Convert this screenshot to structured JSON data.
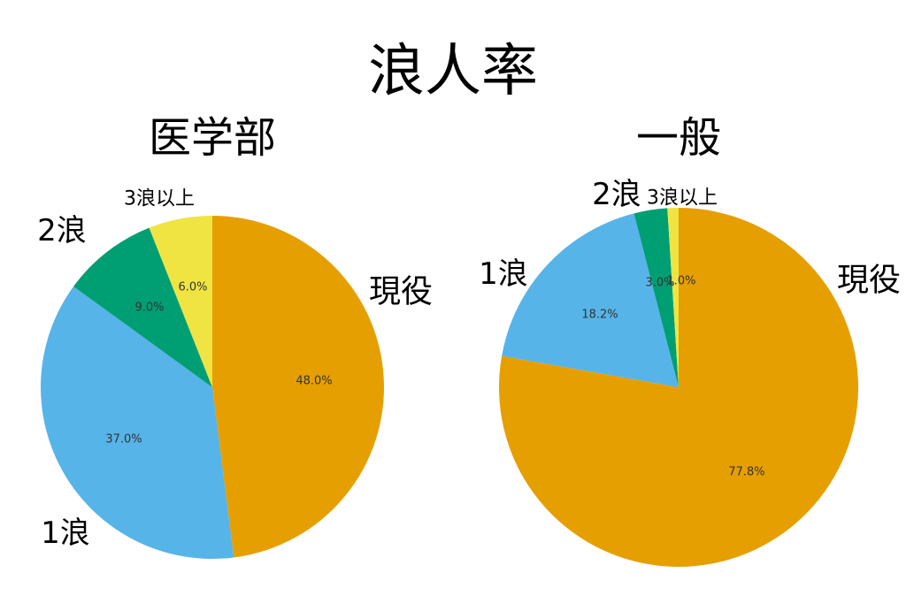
{
  "title": "浪人率",
  "chart_data": [
    {
      "type": "pie",
      "title": "医学部",
      "categories": [
        "現役",
        "1浪",
        "2浪",
        "3浪以上"
      ],
      "values": [
        48.0,
        37.0,
        9.0,
        6.0
      ],
      "value_labels": [
        "48.0%",
        "37.0%",
        "9.0%",
        "6.0%"
      ],
      "colors": [
        "#E69F00",
        "#56B4E9",
        "#009E73",
        "#F0E442"
      ],
      "start_angle": "top",
      "direction": "clockwise",
      "legend": "none"
    },
    {
      "type": "pie",
      "title": "一般",
      "categories": [
        "現役",
        "1浪",
        "2浪",
        "3浪以上"
      ],
      "values": [
        77.8,
        18.2,
        3.0,
        1.0
      ],
      "value_labels": [
        "77.8%",
        "18.2%",
        "3.0%",
        "1.0%"
      ],
      "colors": [
        "#E69F00",
        "#56B4E9",
        "#009E73",
        "#F0E442"
      ],
      "start_angle": "top",
      "direction": "clockwise",
      "legend": "none"
    }
  ]
}
